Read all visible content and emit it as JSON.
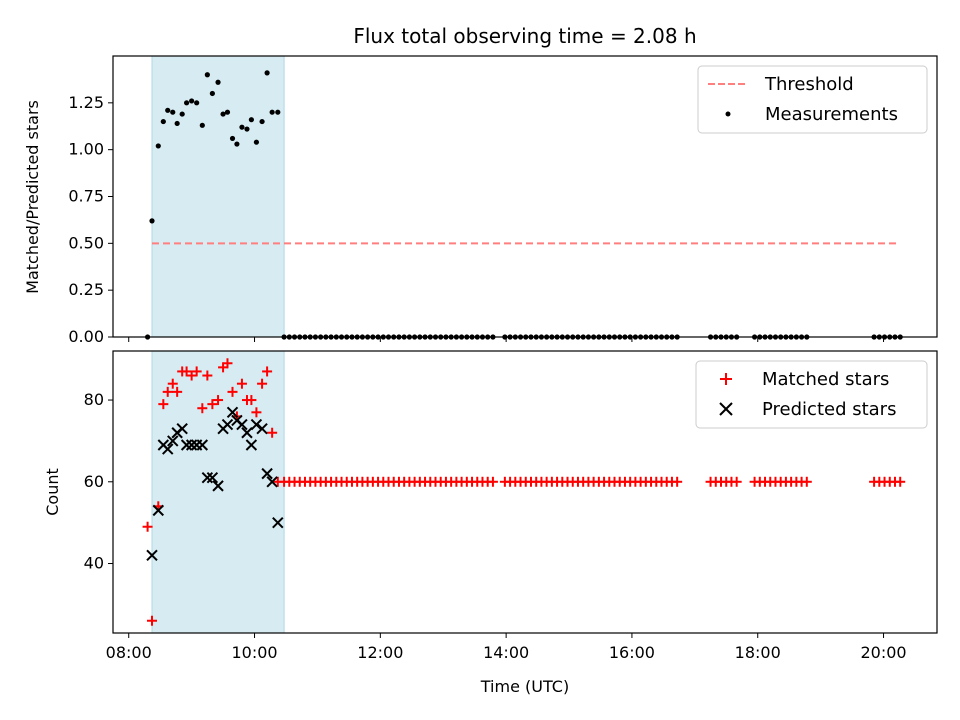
{
  "chart_data": [
    {
      "type": "scatter",
      "title": "Flux total observing time = 2.08 h",
      "xlabel": "",
      "ylabel": "Matched/Predicted stars",
      "xlim": [
        7.75,
        20.85
      ],
      "ylim": [
        0,
        1.5
      ],
      "yticks": [
        0.0,
        0.25,
        0.5,
        0.75,
        1.0,
        1.25
      ],
      "ytick_labels": [
        "0.00",
        "0.25",
        "0.50",
        "0.75",
        "1.00",
        "1.25"
      ],
      "shaded_region": {
        "x0": 8.37,
        "x1": 10.47,
        "color": "#add8e6"
      },
      "legend": {
        "position": "top-right",
        "entries": [
          "Threshold",
          "Measurements"
        ]
      },
      "series": [
        {
          "name": "Threshold",
          "kind": "line",
          "style": "dashed",
          "color": "#ff7f7f",
          "x": [
            8.37,
            20.25
          ],
          "y": [
            0.5,
            0.5
          ]
        },
        {
          "name": "Measurements",
          "kind": "scatter",
          "color": "#000000",
          "points": [
            [
              8.3,
              0.0
            ],
            [
              8.37,
              0.62
            ],
            [
              8.47,
              1.02
            ],
            [
              8.55,
              1.15
            ],
            [
              8.62,
              1.21
            ],
            [
              8.7,
              1.2
            ],
            [
              8.77,
              1.14
            ],
            [
              8.85,
              1.19
            ],
            [
              8.92,
              1.25
            ],
            [
              9.0,
              1.26
            ],
            [
              9.08,
              1.25
            ],
            [
              9.17,
              1.13
            ],
            [
              9.25,
              1.4
            ],
            [
              9.33,
              1.3
            ],
            [
              9.42,
              1.36
            ],
            [
              9.5,
              1.19
            ],
            [
              9.57,
              1.2
            ],
            [
              9.65,
              1.06
            ],
            [
              9.72,
              1.03
            ],
            [
              9.8,
              1.12
            ],
            [
              9.88,
              1.11
            ],
            [
              9.95,
              1.16
            ],
            [
              10.03,
              1.04
            ],
            [
              10.12,
              1.15
            ],
            [
              10.2,
              1.41
            ],
            [
              10.28,
              1.2
            ],
            [
              10.37,
              1.2
            ]
          ],
          "zero_runs": [
            {
              "from": 10.47,
              "to": 13.75,
              "step": 0.083
            },
            {
              "from": 13.98,
              "to": 16.75,
              "step": 0.083
            },
            {
              "from": 17.25,
              "to": 17.65,
              "step": 0.083
            },
            {
              "from": 17.95,
              "to": 18.75,
              "step": 0.083
            },
            {
              "from": 19.85,
              "to": 20.25,
              "step": 0.083
            }
          ]
        }
      ]
    },
    {
      "type": "scatter",
      "title": "",
      "xlabel": "Time (UTC)",
      "ylabel": "Count",
      "xlim": [
        7.75,
        20.85
      ],
      "ylim": [
        23,
        92
      ],
      "yticks": [
        40,
        60,
        80
      ],
      "ytick_labels": [
        "40",
        "60",
        "80"
      ],
      "xticks": [
        8,
        10,
        12,
        14,
        16,
        18,
        20
      ],
      "xtick_labels": [
        "08:00",
        "10:00",
        "12:00",
        "14:00",
        "16:00",
        "18:00",
        "20:00"
      ],
      "shaded_region": {
        "x0": 8.37,
        "x1": 10.47,
        "color": "#add8e6"
      },
      "legend": {
        "position": "top-right",
        "entries": [
          "Matched stars",
          "Predicted stars"
        ]
      },
      "series": [
        {
          "name": "Matched stars",
          "kind": "scatter",
          "marker": "+",
          "color": "#ff0000",
          "points": [
            [
              8.3,
              49
            ],
            [
              8.37,
              26
            ],
            [
              8.47,
              54
            ],
            [
              8.55,
              79
            ],
            [
              8.62,
              82
            ],
            [
              8.7,
              84
            ],
            [
              8.77,
              82
            ],
            [
              8.85,
              87
            ],
            [
              8.92,
              87
            ],
            [
              9.0,
              86
            ],
            [
              9.08,
              87
            ],
            [
              9.17,
              78
            ],
            [
              9.25,
              86
            ],
            [
              9.33,
              79
            ],
            [
              9.42,
              80
            ],
            [
              9.5,
              88
            ],
            [
              9.57,
              89
            ],
            [
              9.65,
              82
            ],
            [
              9.72,
              76
            ],
            [
              9.8,
              84
            ],
            [
              9.88,
              80
            ],
            [
              9.95,
              80
            ],
            [
              10.03,
              77
            ],
            [
              10.12,
              84
            ],
            [
              10.2,
              87
            ],
            [
              10.28,
              72
            ],
            [
              10.37,
              60
            ]
          ],
          "constant_runs": [
            {
              "from": 10.47,
              "to": 13.75,
              "step": 0.083,
              "value": 60
            },
            {
              "from": 13.98,
              "to": 16.75,
              "step": 0.083,
              "value": 60
            },
            {
              "from": 17.25,
              "to": 17.65,
              "step": 0.083,
              "value": 60
            },
            {
              "from": 17.95,
              "to": 18.75,
              "step": 0.083,
              "value": 60
            },
            {
              "from": 19.85,
              "to": 20.25,
              "step": 0.083,
              "value": 60
            }
          ]
        },
        {
          "name": "Predicted stars",
          "kind": "scatter",
          "marker": "x",
          "color": "#000000",
          "points": [
            [
              8.37,
              42
            ],
            [
              8.47,
              53
            ],
            [
              8.55,
              69
            ],
            [
              8.62,
              68
            ],
            [
              8.7,
              70
            ],
            [
              8.77,
              72
            ],
            [
              8.85,
              73
            ],
            [
              8.92,
              69
            ],
            [
              9.0,
              69
            ],
            [
              9.08,
              69
            ],
            [
              9.17,
              69
            ],
            [
              9.25,
              61
            ],
            [
              9.33,
              61
            ],
            [
              9.42,
              59
            ],
            [
              9.5,
              73
            ],
            [
              9.57,
              74
            ],
            [
              9.65,
              77
            ],
            [
              9.72,
              75
            ],
            [
              9.8,
              74
            ],
            [
              9.88,
              72
            ],
            [
              9.95,
              69
            ],
            [
              10.03,
              74
            ],
            [
              10.12,
              73
            ],
            [
              10.2,
              62
            ],
            [
              10.28,
              60
            ],
            [
              10.37,
              50
            ]
          ]
        }
      ]
    }
  ]
}
